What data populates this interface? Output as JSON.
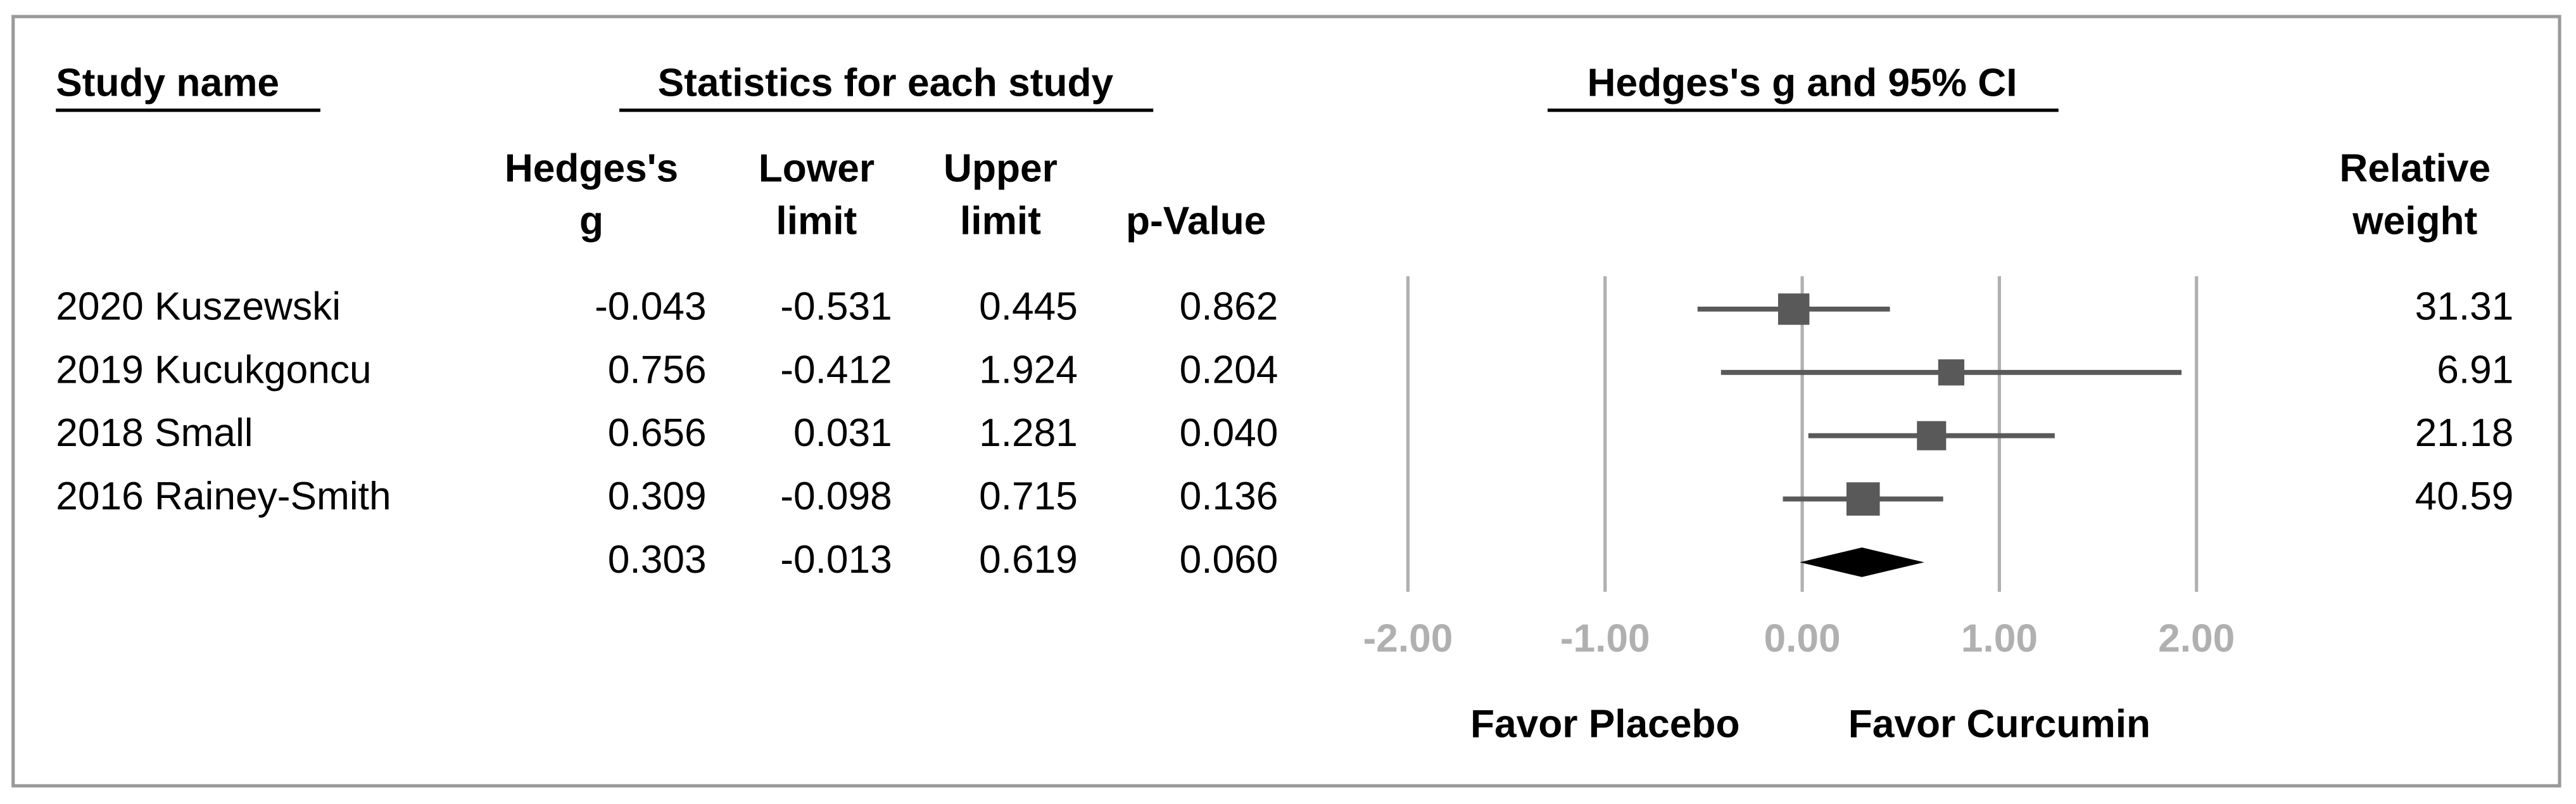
{
  "chart_data": {
    "type": "forest",
    "headers": {
      "study": "Study name",
      "stats": "Statistics for each study",
      "plot": "Hedges's g and 95% CI"
    },
    "categories": [
      "2020 Kuszewski",
      "2019 Kucukgoncu",
      "2018 Small",
      "2016 Rainey-Smith",
      null
    ],
    "series": [
      {
        "name": [
          "Hedges's",
          "g"
        ],
        "values": [
          -0.043,
          0.756,
          0.656,
          0.309,
          0.303
        ]
      },
      {
        "name": [
          "Lower",
          "limit"
        ],
        "values": [
          -0.531,
          -0.412,
          0.031,
          -0.098,
          -0.013
        ]
      },
      {
        "name": [
          "Upper",
          "limit"
        ],
        "values": [
          0.445,
          1.924,
          1.281,
          0.715,
          0.619
        ]
      },
      {
        "name": [
          "p-Value"
        ],
        "values": [
          0.862,
          0.204,
          0.04,
          0.136,
          0.06
        ],
        "value_labels": [
          "0.862",
          "0.204",
          "0.040",
          "0.136",
          "0.060"
        ]
      },
      {
        "name": [
          "Relative",
          "weight"
        ],
        "values": [
          31.31,
          6.91,
          21.18,
          40.59,
          null
        ]
      }
    ],
    "xlim": [
      -2,
      2
    ],
    "xticks": [
      {
        "value": -2,
        "label": "-2.00"
      },
      {
        "value": -1,
        "label": "-1.00"
      },
      {
        "value": 0,
        "label": "0.00"
      },
      {
        "value": 1,
        "label": "1.00"
      },
      {
        "value": 2,
        "label": "2.00"
      }
    ],
    "grid": true,
    "color": "#595959",
    "summary_color": "#000000",
    "x_labels": [
      "Favor Placebo",
      "Favor Curcumin"
    ]
  }
}
